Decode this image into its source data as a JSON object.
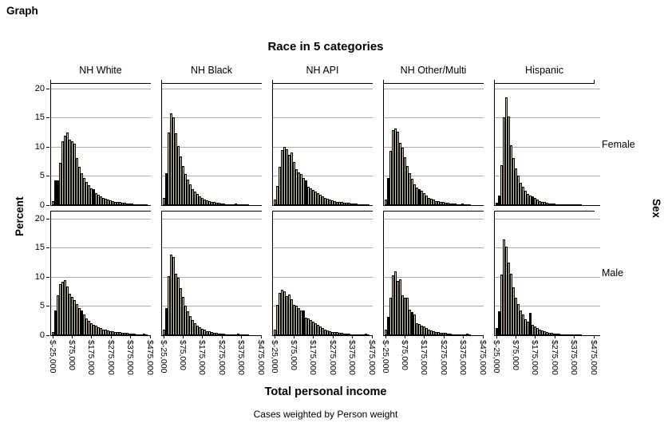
{
  "output": {
    "heading": "Graph"
  },
  "chart": {
    "title": "Race in 5 categories",
    "x_axis_title": "Total personal income",
    "y_axis_title": "Percent",
    "row_axis_title": "Sex",
    "footnote": "Cases weighted by Person weight",
    "columns": [
      "NH White",
      "NH Black",
      "NH API",
      "NH Other/Multi",
      "Hispanic"
    ],
    "rows": [
      "Female",
      "Male"
    ],
    "y_tick_values": [
      0,
      5,
      10,
      15,
      20
    ],
    "x_tick_labels": [
      "$-25,000",
      "$75,000",
      "$175,000",
      "$275,000",
      "$375,000",
      "$475,000"
    ],
    "colors": {
      "bar_fill": "#d8d2a2",
      "bar_border": "#000000",
      "bar_dark": "#000000",
      "gridline": "#ababab",
      "axis": "#000000",
      "background": "#ffffff"
    }
  },
  "chart_data": {
    "type": "bar",
    "subtype": "paneled-histogram",
    "panel_columns_variable": "Race in 5 categories",
    "panel_rows_variable": "Sex",
    "xlabel": "Total personal income",
    "ylabel": "Percent",
    "ylim": [
      0,
      20
    ],
    "y_gridlines": [
      5,
      10,
      15,
      20
    ],
    "x_ticks_dollars": [
      -25000,
      75000,
      175000,
      275000,
      375000,
      475000
    ],
    "bin_start_dollars": -25000,
    "bin_width_dollars": 13000,
    "grid": true,
    "panels": [
      {
        "row": "Female",
        "column": "NH White",
        "values": [
          0.7,
          4.2,
          4.3,
          7.3,
          10.9,
          11.9,
          12.4,
          11.2,
          10.9,
          10.6,
          8.1,
          6.6,
          5.5,
          4.7,
          4.0,
          3.4,
          2.9,
          2.8,
          2.1,
          1.8,
          1.5,
          1.3,
          1.1,
          1.0,
          0.8,
          0.7,
          0.6,
          0.5,
          0.5,
          0.4,
          0.4,
          0.3,
          0.3,
          0.25,
          0.2,
          0.2,
          0.15,
          0.1,
          0.1,
          0.1
        ],
        "dark_bars": [
          1,
          2,
          17
        ]
      },
      {
        "row": "Female",
        "column": "NH Black",
        "values": [
          1.2,
          5.5,
          12.4,
          15.8,
          15.1,
          12.3,
          10.1,
          8.3,
          6.7,
          5.4,
          4.4,
          3.5,
          2.8,
          2.3,
          1.9,
          1.5,
          1.2,
          1.0,
          0.8,
          0.7,
          0.6,
          0.5,
          0.4,
          0.35,
          0.3,
          0.25,
          0.2,
          0.2,
          0.15,
          0.1,
          0.3,
          0.1,
          0.1,
          0.05,
          0.05,
          0.05
        ],
        "dark_bars": [
          1,
          30
        ]
      },
      {
        "row": "Female",
        "column": "NH API",
        "values": [
          0.9,
          3.3,
          6.6,
          9.4,
          10.0,
          9.6,
          8.6,
          9.0,
          7.4,
          6.1,
          5.6,
          5.3,
          4.7,
          4.3,
          3.1,
          2.9,
          2.6,
          2.3,
          2.0,
          1.8,
          1.5,
          1.3,
          1.1,
          1.0,
          0.8,
          0.7,
          0.6,
          0.55,
          0.5,
          0.45,
          0.4,
          0.35,
          0.3,
          0.25,
          0.3,
          0.2,
          0.15,
          0.1,
          0.1,
          0.1
        ],
        "dark_bars": [
          13,
          34
        ]
      },
      {
        "row": "Female",
        "column": "NH Other/Multi",
        "values": [
          1.0,
          4.6,
          9.3,
          12.9,
          13.2,
          12.6,
          10.7,
          9.8,
          8.2,
          6.7,
          5.5,
          4.5,
          3.6,
          3.0,
          2.8,
          2.5,
          2.1,
          1.6,
          1.3,
          1.1,
          0.9,
          0.75,
          0.65,
          0.55,
          0.5,
          0.4,
          0.35,
          0.3,
          0.3,
          0.25,
          0.2,
          0.2,
          0.3,
          0.1,
          0.1,
          0.05
        ],
        "dark_bars": [
          1,
          14,
          32
        ]
      },
      {
        "row": "Female",
        "column": "Hispanic",
        "values": [
          0.4,
          1.6,
          6.9,
          15.0,
          18.5,
          15.2,
          10.3,
          8.1,
          6.3,
          5.0,
          3.9,
          3.1,
          2.5,
          1.9,
          1.6,
          1.5,
          1.2,
          0.9,
          0.7,
          0.6,
          0.5,
          0.4,
          0.3,
          0.3,
          0.25,
          0.2,
          0.2,
          0.15,
          0.1,
          0.1,
          0.05,
          0.05,
          0.05,
          0.05,
          0.05,
          0.05
        ],
        "dark_bars": [
          0,
          1,
          15
        ]
      },
      {
        "row": "Male",
        "column": "NH White",
        "values": [
          0.6,
          4.2,
          6.9,
          8.7,
          9.2,
          9.5,
          8.3,
          7.1,
          6.6,
          6.0,
          5.3,
          4.7,
          4.2,
          3.5,
          2.9,
          2.5,
          2.1,
          1.8,
          1.6,
          1.4,
          1.2,
          1.0,
          0.9,
          0.8,
          0.7,
          0.65,
          0.6,
          0.55,
          0.5,
          0.45,
          0.4,
          0.35,
          0.3,
          0.3,
          0.25,
          0.2,
          0.2,
          0.15,
          0.3,
          0.1
        ],
        "dark_bars": [
          1,
          12,
          38
        ]
      },
      {
        "row": "Male",
        "column": "NH Black",
        "values": [
          1.0,
          4.7,
          10.1,
          13.9,
          13.4,
          10.6,
          9.9,
          8.1,
          6.6,
          5.1,
          4.1,
          3.3,
          2.6,
          2.1,
          1.7,
          1.4,
          1.1,
          0.9,
          0.75,
          0.65,
          0.55,
          0.45,
          0.4,
          0.3,
          0.3,
          0.25,
          0.2,
          0.2,
          0.15,
          0.1,
          0.1,
          0.3,
          0.05,
          0.05,
          0.05,
          0.05
        ],
        "dark_bars": [
          1,
          31
        ]
      },
      {
        "row": "Male",
        "column": "NH API",
        "values": [
          0.9,
          5.2,
          7.3,
          7.8,
          7.5,
          6.7,
          7.0,
          6.2,
          5.2,
          5.1,
          4.6,
          4.3,
          4.2,
          3.0,
          2.9,
          2.6,
          2.3,
          2.0,
          1.8,
          1.5,
          1.2,
          1.0,
          0.85,
          0.7,
          0.6,
          0.55,
          0.5,
          0.4,
          0.35,
          0.3,
          0.3,
          0.25,
          0.2,
          0.2,
          0.15,
          0.15,
          0.1,
          0.1,
          0.3,
          0.2
        ],
        "dark_bars": [
          12,
          38,
          39
        ]
      },
      {
        "row": "Male",
        "column": "NH Other/Multi",
        "values": [
          1.0,
          3.2,
          6.5,
          10.3,
          11.0,
          9.3,
          9.6,
          6.9,
          6.5,
          6.4,
          4.4,
          4.0,
          3.6,
          2.1,
          1.9,
          1.7,
          1.5,
          1.2,
          1.0,
          0.85,
          0.7,
          0.6,
          0.5,
          0.45,
          0.4,
          0.35,
          0.3,
          0.25,
          0.2,
          0.2,
          0.15,
          0.15,
          0.1,
          0.1,
          0.3,
          0.1
        ],
        "dark_bars": [
          1,
          11,
          34
        ]
      },
      {
        "row": "Male",
        "column": "Hispanic",
        "values": [
          1.2,
          4.1,
          10.4,
          16.4,
          15.2,
          12.4,
          10.5,
          8.2,
          6.5,
          5.3,
          4.3,
          3.5,
          2.8,
          2.3,
          3.9,
          1.8,
          1.5,
          1.2,
          1.0,
          0.8,
          0.65,
          0.55,
          0.45,
          0.4,
          0.3,
          0.3,
          0.25,
          0.2,
          0.15,
          0.15,
          0.1,
          0.1,
          0.1,
          0.05,
          0.05,
          0.05
        ],
        "dark_bars": [
          0,
          1,
          14
        ]
      }
    ]
  }
}
